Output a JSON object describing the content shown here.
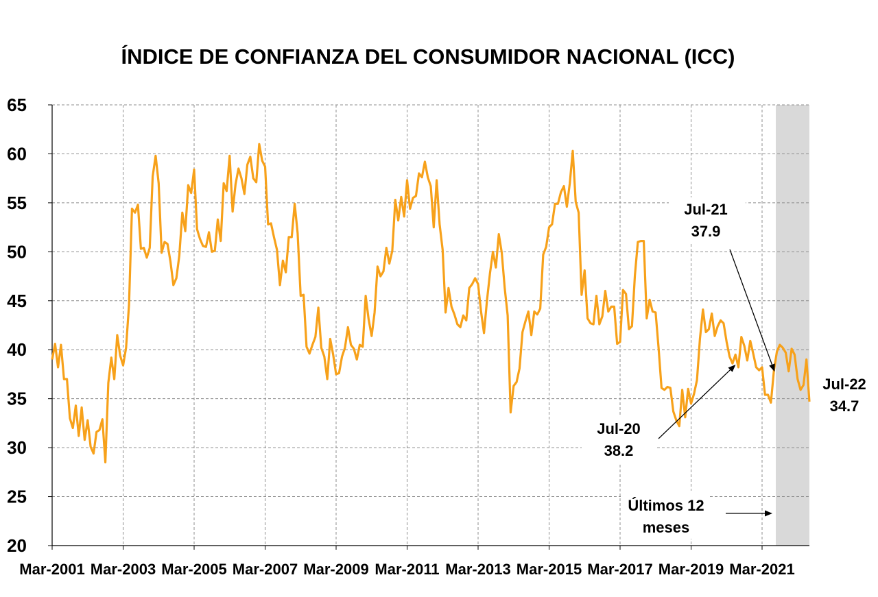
{
  "chart_data": {
    "type": "line",
    "title": "ÍNDICE DE CONFIANZA DEL CONSUMIDOR NACIONAL (ICC)",
    "xlabel": "",
    "ylabel": "",
    "ylim": [
      20,
      65
    ],
    "yticks": [
      "65",
      "60",
      "55",
      "50",
      "45",
      "40",
      "35",
      "30",
      "25",
      "20"
    ],
    "xticks": [
      "Mar-2001",
      "Mar-2003",
      "Mar-2005",
      "Mar-2007",
      "Mar-2009",
      "Mar-2011",
      "Mar-2013",
      "Mar-2015",
      "Mar-2017",
      "Mar-2019",
      "Mar-2021"
    ],
    "x_start": "Mar-2001",
    "x_end": "Jul-2022",
    "grid": true,
    "line_color": "#F7A11A",
    "shade_color": "#D9D9D9",
    "shaded_period": [
      "Aug-2021",
      "Jul-2022"
    ],
    "series": [
      {
        "values": [
          39.0,
          40.6,
          38.2,
          40.5,
          37.0,
          37.0,
          33.0,
          32.0,
          34.3,
          31.2,
          34.1,
          30.8,
          32.8,
          30.1,
          29.4,
          31.6,
          31.8,
          32.9,
          28.5,
          36.6,
          39.2,
          37.0,
          41.5,
          39.4,
          38.4,
          40.2,
          44.6,
          54.4,
          54.0,
          54.8,
          50.3,
          50.4,
          49.4,
          50.4,
          57.7,
          59.8,
          57.0,
          49.9,
          51.0,
          50.8,
          49.0,
          46.6,
          47.3,
          49.6,
          54.0,
          52.1,
          56.8,
          56.0,
          58.4,
          52.3,
          51.3,
          50.6,
          50.5,
          52.0,
          50.0,
          50.1,
          53.3,
          51.1,
          57.0,
          56.2,
          59.8,
          54.1,
          56.9,
          58.5,
          57.5,
          55.9,
          58.9,
          59.7,
          57.5,
          57.1,
          61.0,
          59.3,
          58.7,
          52.8,
          52.9,
          51.5,
          50.2,
          46.6,
          49.1,
          47.9,
          51.5,
          51.5,
          54.9,
          51.9,
          45.5,
          45.6,
          40.3,
          39.6,
          40.5,
          41.3,
          44.3,
          40.2,
          39.3,
          37.0,
          41.1,
          39.5,
          37.5,
          37.6,
          39.3,
          40.2,
          42.3,
          40.5,
          40.1,
          39.0,
          40.5,
          40.3,
          45.5,
          43.1,
          41.4,
          43.8,
          48.5,
          47.5,
          48.0,
          50.4,
          48.8,
          50.1,
          55.3,
          53.2,
          55.6,
          53.6,
          57.3,
          54.4,
          55.5,
          55.7,
          58.0,
          57.6,
          59.2,
          57.6,
          56.7,
          52.5,
          57.3,
          52.8,
          50.2,
          43.8,
          46.3,
          44.4,
          43.6,
          42.6,
          42.3,
          43.5,
          43.0,
          46.3,
          46.7,
          47.3,
          46.7,
          43.9,
          41.7,
          45.0,
          47.8,
          50.0,
          48.4,
          51.8,
          49.9,
          46.3,
          43.5,
          33.6,
          36.3,
          36.7,
          38.1,
          41.8,
          42.9,
          43.9,
          41.5,
          43.9,
          43.6,
          44.2,
          49.7,
          50.5,
          52.5,
          52.8,
          54.9,
          54.9,
          56.1,
          56.7,
          54.6,
          57.0,
          60.3,
          55.1,
          54.0,
          45.6,
          48.1,
          43.2,
          42.7,
          42.6,
          45.5,
          42.6,
          43.4,
          46.0,
          43.9,
          44.4,
          44.4,
          40.6,
          40.8,
          46.1,
          45.7,
          42.1,
          42.4,
          47.6,
          51.0,
          51.1,
          51.1,
          43.2,
          45.1,
          43.9,
          43.8,
          40.2,
          36.1,
          35.9,
          36.2,
          36.1,
          33.7,
          32.8,
          32.2,
          35.9,
          33.1,
          36.0,
          34.5,
          35.5,
          36.9,
          41.1,
          44.1,
          41.8,
          42.1,
          43.7,
          41.4,
          42.4,
          43.0,
          42.7,
          40.8,
          39.3,
          38.6,
          39.5,
          38.2,
          41.3,
          40.4,
          38.9,
          40.9,
          39.6,
          38.2,
          37.9,
          38.2,
          35.4,
          35.4,
          34.6,
          37.9,
          39.8,
          40.5,
          40.2,
          39.7,
          37.8,
          40.1,
          39.5,
          37.0,
          35.9,
          36.4,
          39.0,
          34.7
        ]
      }
    ],
    "annotations": [
      {
        "label": "Jul-20",
        "value": "38.2"
      },
      {
        "label": "Jul-21",
        "value": "37.9"
      },
      {
        "label": "Jul-22",
        "value": "34.7"
      },
      {
        "label_line1": "Últimos 12",
        "label_line2": "meses"
      }
    ]
  }
}
